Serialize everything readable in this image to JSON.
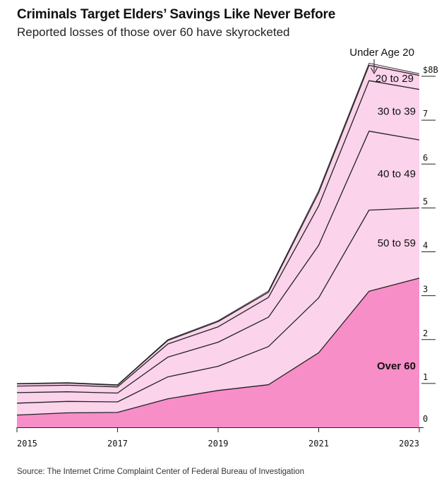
{
  "header": {
    "title": "Criminals Target Elders’ Savings Like Never Before",
    "subtitle": "Reported losses of those over 60 have skyrocketed"
  },
  "footer": {
    "source": "Source: The Internet Crime Complaint Center of Federal Bureau of Investigation"
  },
  "colors": {
    "over60": "#f78ec8",
    "other": "#fbd3eb",
    "line": "#222222"
  },
  "chart_data": {
    "type": "area",
    "stacked": true,
    "title": "Criminals Target Elders’ Savings Like Never Before",
    "subtitle": "Reported losses of those over 60 have skyrocketed",
    "x": [
      2015,
      2016,
      2017,
      2018,
      2019,
      2020,
      2021,
      2022,
      2023
    ],
    "x_tick_labels": [
      "2015",
      "2017",
      "2019",
      "2021",
      "2023"
    ],
    "y_tick_labels": [
      "0",
      "1",
      "2",
      "3",
      "4",
      "5",
      "6",
      "7",
      "$8B"
    ],
    "ylim": [
      0,
      8
    ],
    "series": [
      {
        "name": "Over 60",
        "values": [
          0.28,
          0.33,
          0.34,
          0.65,
          0.84,
          0.97,
          1.7,
          3.1,
          3.4
        ]
      },
      {
        "name": "50 to 59",
        "values": [
          0.27,
          0.26,
          0.24,
          0.5,
          0.55,
          0.87,
          1.25,
          1.85,
          1.6
        ]
      },
      {
        "name": "40 to 49",
        "values": [
          0.24,
          0.22,
          0.2,
          0.45,
          0.55,
          0.67,
          1.2,
          1.8,
          1.55
        ]
      },
      {
        "name": "30 to 39",
        "values": [
          0.15,
          0.15,
          0.14,
          0.3,
          0.35,
          0.45,
          0.9,
          1.15,
          1.15
        ]
      },
      {
        "name": "20 to 29",
        "values": [
          0.05,
          0.05,
          0.04,
          0.08,
          0.12,
          0.12,
          0.3,
          0.35,
          0.32
        ]
      },
      {
        "name": "Under Age 20",
        "values": [
          0.01,
          0.01,
          0.01,
          0.02,
          0.02,
          0.03,
          0.05,
          0.05,
          0.04
        ]
      }
    ],
    "annotations": [
      "Under Age 20"
    ],
    "legend": "direct labels on the right"
  }
}
